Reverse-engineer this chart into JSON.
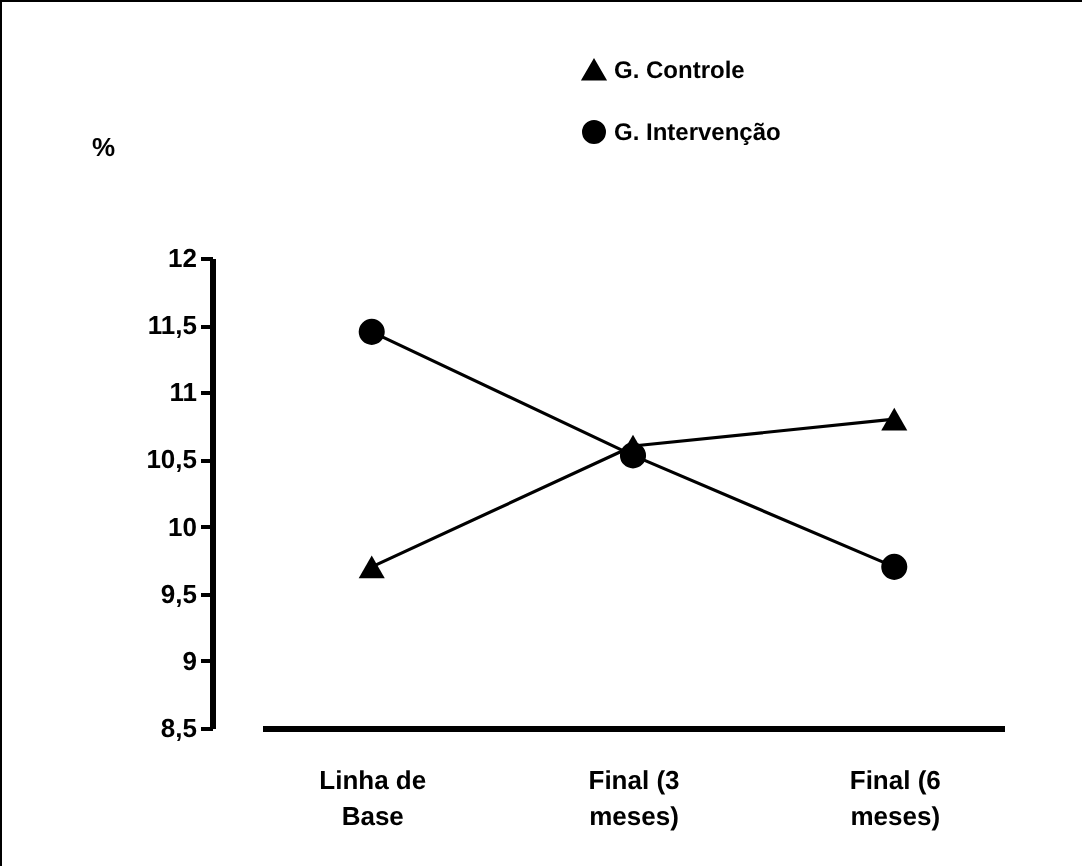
{
  "chart_data": {
    "type": "line",
    "annotations": [
      "%"
    ],
    "categories": [
      "Linha de\nBase",
      "Final  (3\nmeses)",
      "Final (6\nmeses)"
    ],
    "series": [
      {
        "name": "G. Controle",
        "color": "#000000",
        "marker": "triangle",
        "values": [
          9.7,
          10.6,
          10.8
        ]
      },
      {
        "name": "G. Intervenção",
        "color": "#000000",
        "marker": "circle",
        "values": [
          11.45,
          10.53,
          9.7
        ]
      }
    ],
    "ylim": [
      8.5,
      12
    ],
    "yticks": [
      {
        "value": 8.5,
        "label": "8,5"
      },
      9,
      {
        "value": 9.5,
        "label": "9,5"
      },
      10,
      {
        "value": 10.5,
        "label": "10,5"
      },
      11,
      {
        "value": 11.5,
        "label": "11,5"
      },
      12
    ],
    "grid": false,
    "legend": "top right",
    "line_style": "solid"
  }
}
